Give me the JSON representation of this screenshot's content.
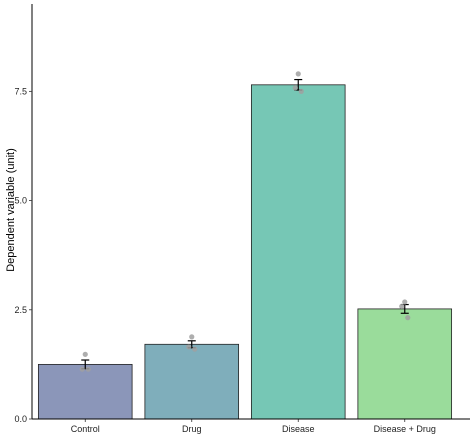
{
  "chart_data": {
    "type": "bar",
    "title": "",
    "xlabel": "",
    "ylabel": "Dependent variable (unit)",
    "categories": [
      "Control",
      "Drug",
      "Disease",
      "Disease + Drug"
    ],
    "values": [
      1.25,
      1.71,
      7.65,
      2.52
    ],
    "error": [
      0.1,
      0.08,
      0.12,
      0.1
    ],
    "points": [
      [
        1.48,
        1.14,
        1.14
      ],
      [
        1.88,
        1.65,
        1.6
      ],
      [
        7.9,
        7.58,
        7.5
      ],
      [
        2.68,
        2.58,
        2.32
      ]
    ],
    "colors": [
      "#8b96b9",
      "#7faebb",
      "#76c7b5",
      "#9adc9b"
    ],
    "ylim": [
      0,
      9.5
    ],
    "yticks": [
      0,
      2.5,
      5,
      7.5
    ],
    "ytick_labels": [
      "0.0",
      "2.5",
      "5.0",
      "7.5"
    ],
    "grid": false,
    "legend": "none"
  }
}
